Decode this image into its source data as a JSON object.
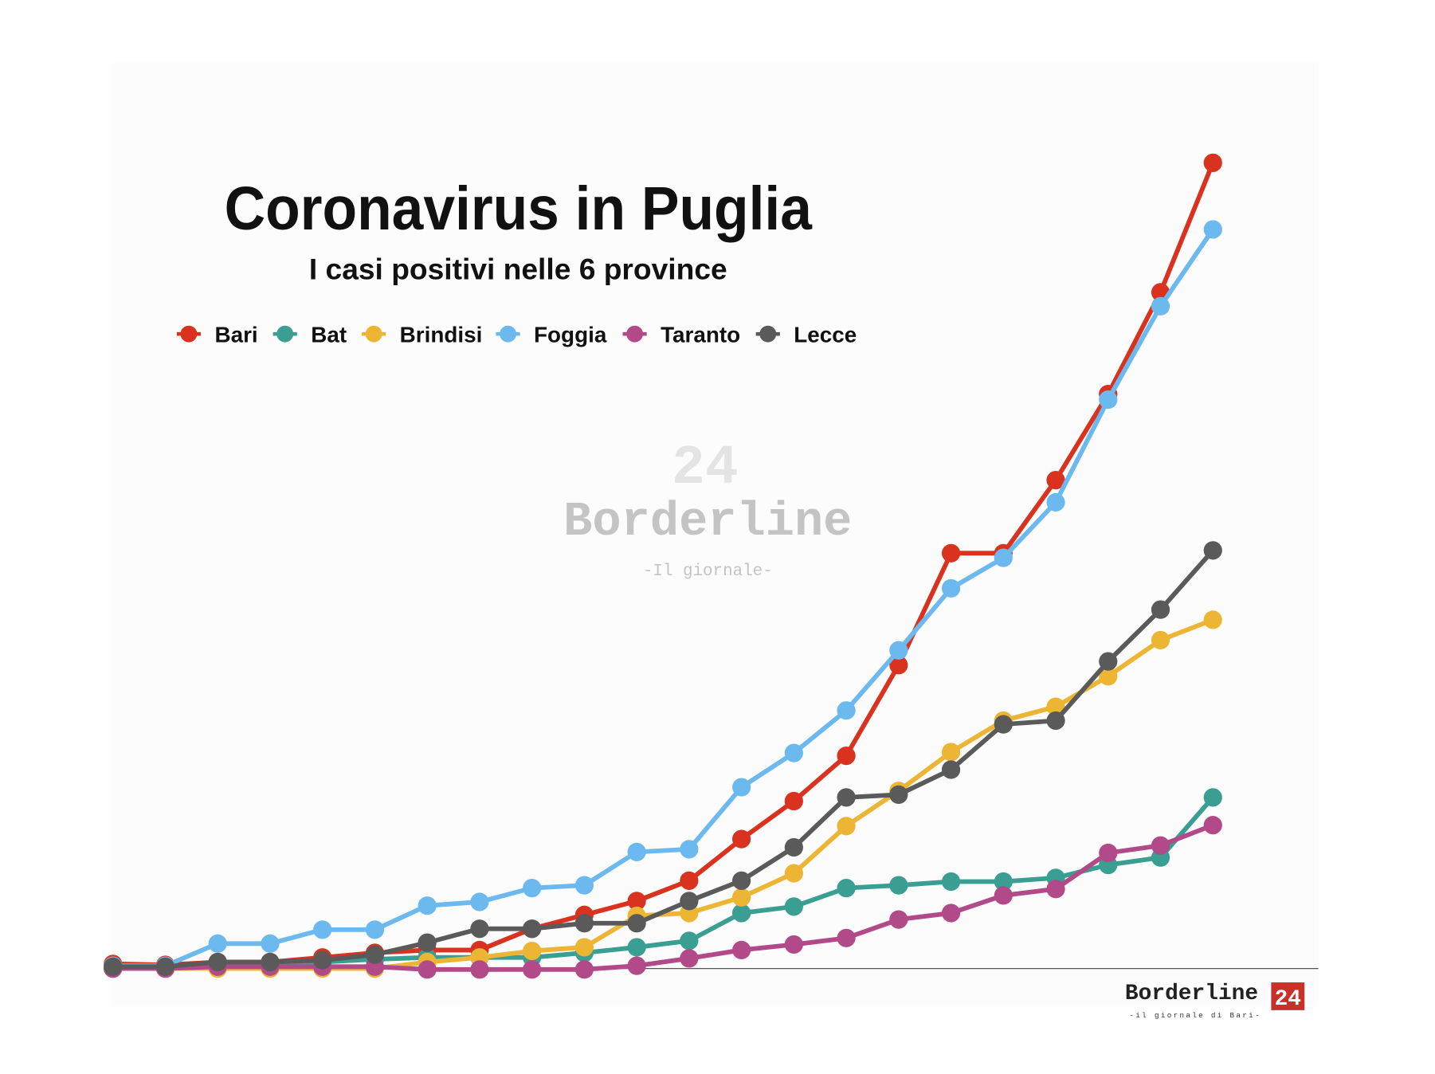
{
  "chart_data": {
    "type": "line",
    "title": "Coronavirus in Puglia",
    "subtitle": "I casi positivi nelle 6 province",
    "xlabel": "",
    "ylabel": "",
    "y_units": "relative (no axis shown)",
    "grid": false,
    "legend_position": "top-left",
    "x": [
      1,
      2,
      3,
      4,
      5,
      6,
      7,
      8,
      9,
      10,
      11,
      12,
      13,
      14,
      15,
      16,
      17,
      18,
      19,
      20,
      21,
      22
    ],
    "ylim": [
      0,
      900
    ],
    "series": [
      {
        "name": "Bari",
        "color": "#d9321f",
        "values": [
          5,
          4,
          7,
          7,
          12,
          17,
          20,
          20,
          43,
          58,
          73,
          95,
          140,
          181,
          230,
          328,
          449,
          449,
          528,
          621,
          731,
          871
        ]
      },
      {
        "name": "Bat",
        "color": "#3a9e92",
        "values": [
          0,
          0,
          4,
          4,
          7,
          10,
          12,
          12,
          12,
          17,
          23,
          30,
          60,
          67,
          87,
          90,
          94,
          94,
          98,
          112,
          120,
          185
        ]
      },
      {
        "name": "Brindisi",
        "color": "#ecb634",
        "values": [
          0,
          0,
          0,
          0,
          0,
          0,
          7,
          12,
          19,
          23,
          57,
          60,
          77,
          103,
          154,
          192,
          234,
          268,
          283,
          316,
          355,
          377
        ]
      },
      {
        "name": "Foggia",
        "color": "#6cb9ef",
        "values": [
          3,
          3,
          27,
          27,
          42,
          42,
          68,
          72,
          87,
          90,
          126,
          129,
          196,
          233,
          279,
          344,
          411,
          444,
          504,
          615,
          716,
          799
        ]
      },
      {
        "name": "Taranto",
        "color": "#b24a8a",
        "values": [
          0,
          0,
          2,
          2,
          2,
          2,
          -1,
          -1,
          -1,
          -1,
          3,
          11,
          20,
          26,
          33,
          53,
          60,
          79,
          86,
          125,
          133,
          155
        ]
      },
      {
        "name": "Lecce",
        "color": "#5a5a5a",
        "values": [
          2,
          2,
          7,
          7,
          9,
          15,
          28,
          43,
          43,
          49,
          49,
          73,
          95,
          131,
          185,
          188,
          215,
          264,
          268,
          332,
          388,
          452
        ]
      }
    ]
  },
  "watermark": {
    "brand": "Borderline",
    "number": "24",
    "tagline": "-Il giornale-"
  },
  "logo": {
    "brand": "Borderline",
    "number": "24",
    "tagline": "-il giornale di Bari-"
  }
}
